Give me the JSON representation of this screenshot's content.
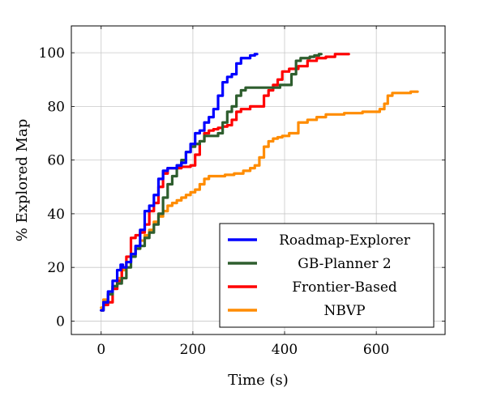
{
  "chart_data": {
    "type": "line",
    "title": "",
    "xlabel": "Time (s)",
    "ylabel": "% Explored Map",
    "xlim": [
      -65,
      750
    ],
    "ylim": [
      -5,
      110
    ],
    "xticks": [
      0,
      200,
      400,
      600
    ],
    "yticks": [
      0,
      20,
      40,
      60,
      80,
      100
    ],
    "grid": true,
    "legend_position": "bottom-right",
    "series": [
      {
        "name": "Roadmap-Explorer",
        "color": "#0000ff",
        "x": [
          0,
          10,
          20,
          30,
          40,
          45,
          50,
          60,
          70,
          80,
          90,
          100,
          110,
          120,
          130,
          140,
          150,
          160,
          170,
          180,
          190,
          200,
          210,
          220,
          230,
          240,
          250,
          260,
          270,
          280,
          290,
          300,
          310,
          320,
          330,
          340
        ],
        "y": [
          4,
          7,
          11,
          15,
          19,
          21,
          20,
          22,
          25,
          28,
          34,
          41,
          43,
          47,
          53,
          56,
          57,
          57,
          58,
          59,
          63,
          66,
          70,
          71,
          74,
          76,
          79,
          84,
          89,
          91,
          92,
          96,
          98,
          98,
          99,
          99.5
        ]
      },
      {
        "name": "GB-Planner 2",
        "color": "#2e5e2e",
        "x": [
          0,
          10,
          20,
          30,
          40,
          50,
          60,
          70,
          80,
          90,
          100,
          110,
          120,
          130,
          140,
          150,
          160,
          170,
          180,
          190,
          200,
          210,
          220,
          230,
          240,
          250,
          260,
          270,
          280,
          290,
          300,
          310,
          320,
          340,
          360,
          380,
          400,
          410,
          420,
          430,
          440,
          450,
          460,
          470,
          480
        ],
        "y": [
          4,
          7,
          10,
          13,
          14,
          16,
          20,
          24,
          27,
          28,
          31,
          33,
          36,
          40,
          46,
          51,
          54,
          58,
          60,
          63,
          65,
          66,
          67,
          69,
          69,
          69,
          70,
          74,
          78,
          80,
          84,
          86,
          87,
          87,
          87,
          87,
          88,
          88,
          92,
          97,
          98,
          98,
          98.5,
          99,
          99.5
        ]
      },
      {
        "name": "Frontier-Based",
        "color": "#ff0000",
        "x": [
          0,
          10,
          20,
          30,
          40,
          50,
          60,
          70,
          80,
          90,
          100,
          110,
          120,
          130,
          140,
          150,
          160,
          170,
          180,
          190,
          200,
          210,
          220,
          230,
          240,
          250,
          260,
          270,
          280,
          290,
          300,
          310,
          320,
          330,
          340,
          350,
          360,
          370,
          380,
          390,
          400,
          420,
          440,
          460,
          480,
          500,
          520,
          540
        ],
        "y": [
          4,
          6,
          7,
          12,
          15,
          20,
          24,
          31,
          32,
          33,
          36,
          41,
          44,
          50,
          55,
          57,
          57,
          57,
          57.5,
          57.5,
          58,
          62,
          67,
          70,
          71,
          71.5,
          72,
          72.5,
          73,
          75,
          78,
          79,
          79,
          80,
          80,
          80,
          84,
          86,
          88,
          90,
          93,
          94,
          95,
          97,
          98,
          98.5,
          99.5,
          99.5
        ]
      },
      {
        "name": "NBVP",
        "color": "#ff8c00",
        "x": [
          0,
          10,
          20,
          30,
          40,
          50,
          60,
          70,
          80,
          90,
          100,
          110,
          120,
          130,
          140,
          150,
          160,
          170,
          180,
          190,
          200,
          210,
          220,
          230,
          240,
          260,
          280,
          300,
          320,
          330,
          340,
          350,
          360,
          370,
          380,
          390,
          400,
          420,
          440,
          460,
          480,
          500,
          520,
          540,
          560,
          580,
          600,
          615,
          620,
          630,
          640,
          660,
          690
        ],
        "y": [
          5,
          8,
          10,
          13,
          16,
          19,
          22,
          25,
          27,
          30,
          32,
          34,
          37,
          39,
          41,
          43,
          44,
          45,
          46,
          47,
          48,
          49,
          51,
          53,
          54,
          54,
          54.5,
          55,
          56,
          57,
          58,
          61,
          65,
          67,
          68,
          68.5,
          69,
          70,
          74,
          75,
          76,
          77,
          77,
          77.5,
          77.5,
          78,
          78,
          79,
          81,
          84,
          85,
          85,
          85.5
        ]
      }
    ]
  }
}
